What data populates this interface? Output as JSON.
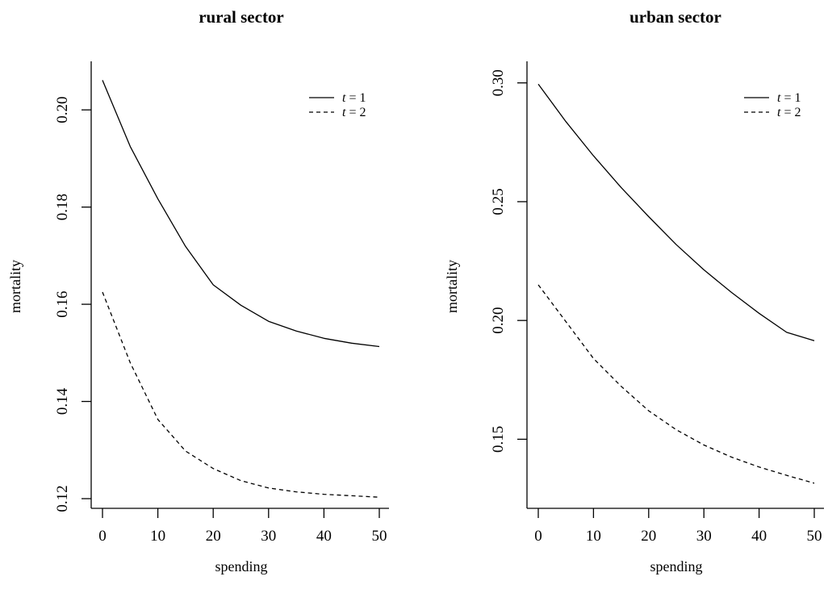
{
  "chart_data": [
    {
      "type": "line",
      "title": "rural sector",
      "xlabel": "spending",
      "ylabel": "mortality",
      "xlim": [
        0,
        50
      ],
      "ylim": [
        0.12,
        0.208
      ],
      "x_ticks": [
        0,
        10,
        20,
        30,
        40,
        50
      ],
      "y_ticks": [
        0.12,
        0.14,
        0.16,
        0.18,
        0.2
      ],
      "y_tick_labels": [
        "0.12",
        "0.14",
        "0.16",
        "0.18",
        "0.20"
      ],
      "grid": false,
      "legend_position": "top-right",
      "legend": [
        {
          "var": "t",
          "eq": " = 1",
          "style": "solid"
        },
        {
          "var": "t",
          "eq": " = 2",
          "style": "dashed"
        }
      ],
      "series": [
        {
          "style": "solid",
          "x": [
            0,
            5,
            10,
            15,
            20,
            25,
            30,
            35,
            40,
            45,
            50
          ],
          "y": [
            0.2061,
            0.1925,
            0.1817,
            0.1719,
            0.164,
            0.1598,
            0.1565,
            0.1545,
            0.153,
            0.152,
            0.1513
          ]
        },
        {
          "style": "dashed",
          "x": [
            0,
            5,
            10,
            15,
            20,
            25,
            30,
            35,
            40,
            45,
            50
          ],
          "y": [
            0.1625,
            0.148,
            0.1363,
            0.1298,
            0.1262,
            0.1237,
            0.1222,
            0.1214,
            0.1209,
            0.1206,
            0.1203
          ]
        }
      ]
    },
    {
      "type": "line",
      "title": "urban sector",
      "xlabel": "spending",
      "ylabel": "mortality",
      "xlim": [
        0,
        50
      ],
      "ylim": [
        0.125,
        0.305
      ],
      "x_ticks": [
        0,
        10,
        20,
        30,
        40,
        50
      ],
      "y_ticks": [
        0.15,
        0.2,
        0.25,
        0.3
      ],
      "y_tick_labels": [
        "0.15",
        "0.20",
        "0.25",
        "0.30"
      ],
      "grid": false,
      "legend_position": "top-right",
      "legend": [
        {
          "var": "t",
          "eq": " = 1",
          "style": "solid"
        },
        {
          "var": "t",
          "eq": " = 2",
          "style": "dashed"
        }
      ],
      "series": [
        {
          "style": "solid",
          "x": [
            0,
            5,
            10,
            15,
            20,
            25,
            30,
            35,
            40,
            45,
            50
          ],
          "y": [
            0.2995,
            0.2837,
            0.2693,
            0.256,
            0.2437,
            0.2319,
            0.2213,
            0.2118,
            0.203,
            0.195,
            0.1915
          ]
        },
        {
          "style": "dashed",
          "x": [
            0,
            5,
            10,
            15,
            20,
            25,
            30,
            35,
            40,
            45,
            50
          ],
          "y": [
            0.215,
            0.1995,
            0.184,
            0.1723,
            0.162,
            0.154,
            0.1476,
            0.1425,
            0.1383,
            0.1348,
            0.1315
          ]
        }
      ]
    }
  ]
}
